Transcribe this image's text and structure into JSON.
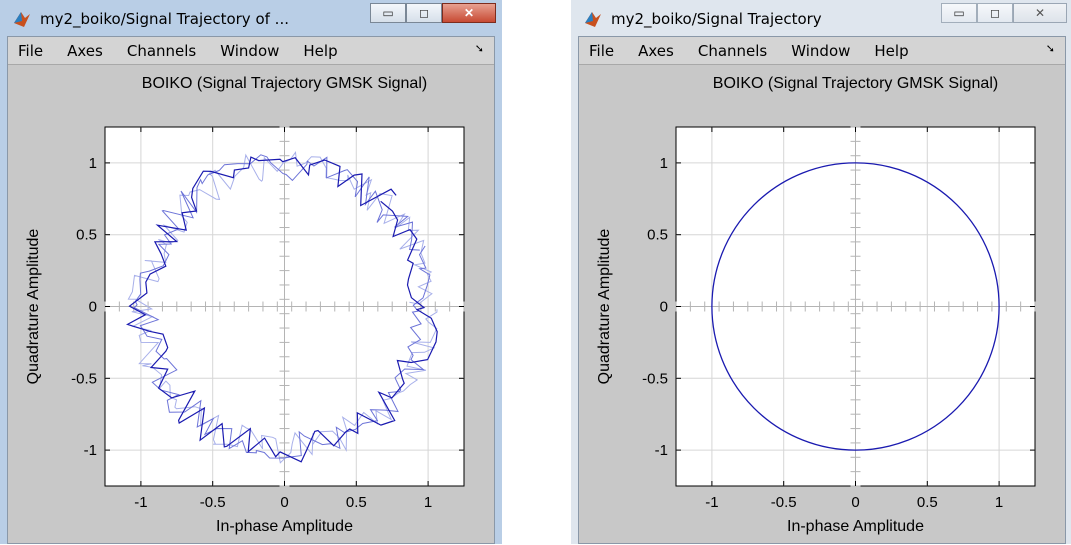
{
  "windows": [
    {
      "title": "my2_boiko/Signal Trajectory of ...",
      "menu": [
        "File",
        "Axes",
        "Channels",
        "Window",
        "Help"
      ],
      "menu_extra_icon": "dock-arrow-icon",
      "controls": [
        "minimize-icon",
        "maximize-icon",
        "close-icon"
      ]
    },
    {
      "title": "my2_boiko/Signal Trajectory",
      "menu": [
        "File",
        "Axes",
        "Channels",
        "Window",
        "Help"
      ],
      "menu_extra_icon": "dock-arrow-icon",
      "controls": [
        "minimize-icon",
        "maximize-icon",
        "close-icon"
      ]
    }
  ],
  "colors": {
    "trace": "#1a1ab0",
    "trace_fade": "#a8b0ea",
    "axes_bg": "#ffffff",
    "figure_bg": "#c8c8c8"
  },
  "chart_data": [
    {
      "type": "scatter",
      "title": "BOIKO (Signal Trajectory GMSK Signal)",
      "xlabel": "In-phase Amplitude",
      "ylabel": "Quadrature Amplitude",
      "xlim": [
        -1.25,
        1.25
      ],
      "ylim": [
        -1.25,
        1.25
      ],
      "xticks": [
        -1,
        -0.5,
        0,
        0.5,
        1
      ],
      "xtick_labels": [
        "-1",
        "-0.5",
        "0",
        "0.5",
        "1"
      ],
      "yticks": [
        -1,
        -0.5,
        0,
        0.5,
        1
      ],
      "ytick_labels": [
        "-1",
        "-0.5",
        "0",
        "0.5",
        "1"
      ],
      "grid": true,
      "trajectory": "noisy ring of radius about 1"
    },
    {
      "type": "line",
      "title": "BOIKO (Signal Trajectory GMSK Signal)",
      "xlabel": "In-phase Amplitude",
      "ylabel": "Quadrature Amplitude",
      "xlim": [
        -1.25,
        1.25
      ],
      "ylim": [
        -1.25,
        1.25
      ],
      "xticks": [
        -1,
        -0.5,
        0,
        0.5,
        1
      ],
      "xtick_labels": [
        "-1",
        "-0.5",
        "0",
        "0.5",
        "1"
      ],
      "yticks": [
        -1,
        -0.5,
        0,
        0.5,
        1
      ],
      "ytick_labels": [
        "-1",
        "-0.5",
        "0",
        "0.5",
        "1"
      ],
      "grid": true,
      "circle_radius": 1
    }
  ]
}
